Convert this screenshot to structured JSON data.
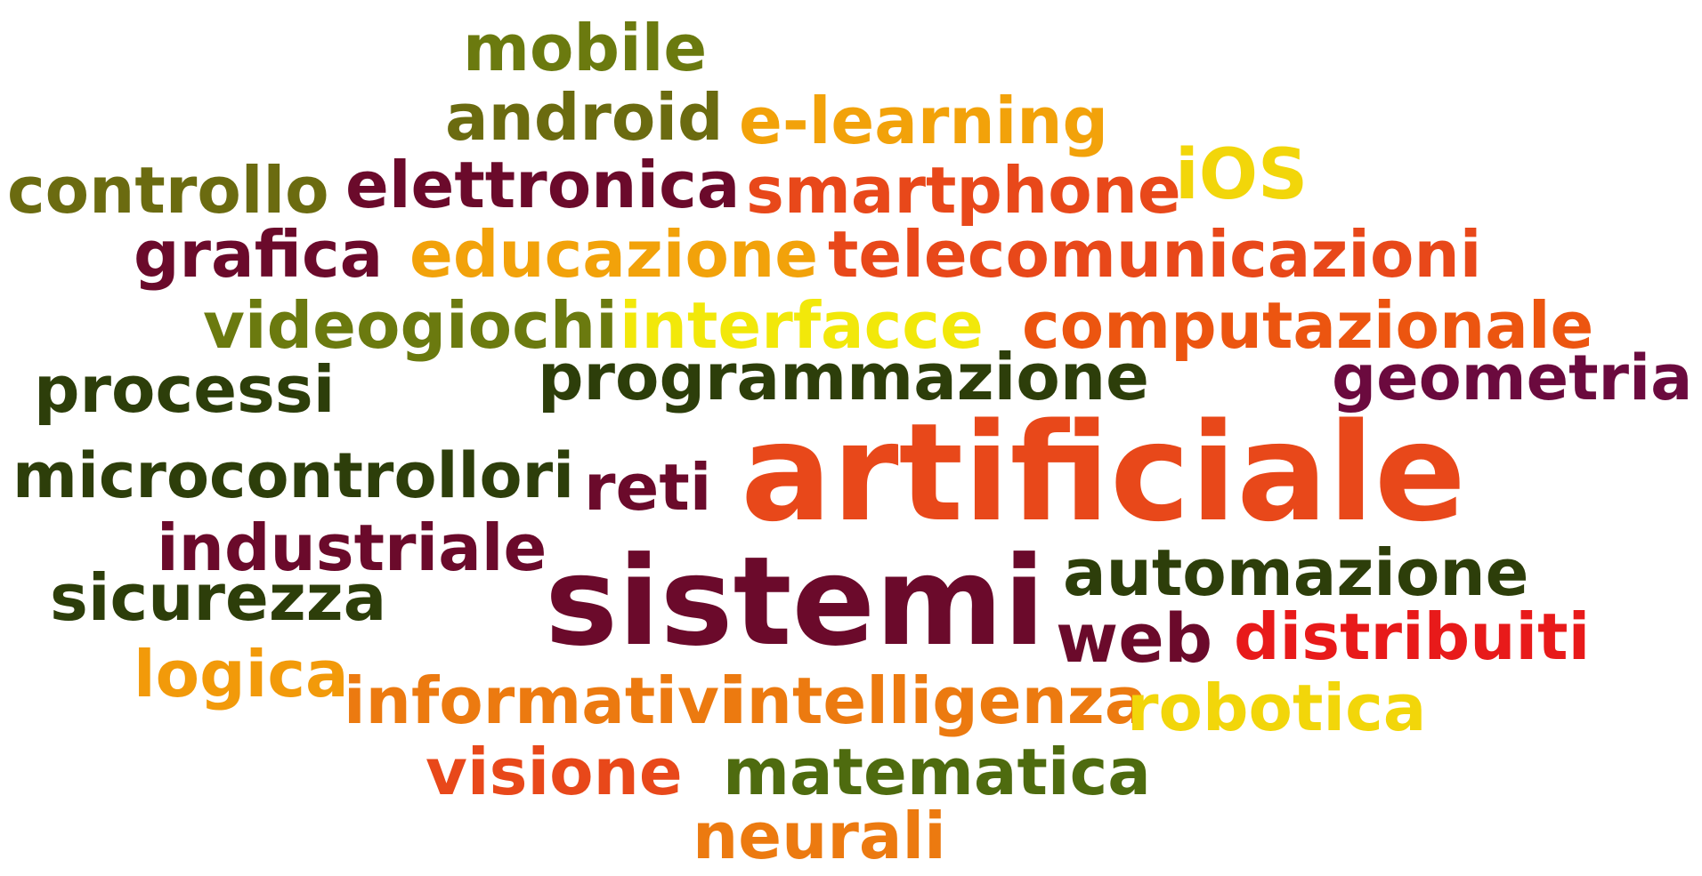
{
  "cloud": {
    "words": [
      {
        "id": "mobile",
        "text": "mobile",
        "color": "#6b7a0f"
      },
      {
        "id": "android",
        "text": "android",
        "color": "#6b6b10"
      },
      {
        "id": "elearning",
        "text": "e-learning",
        "color": "#f2a20a"
      },
      {
        "id": "controllo",
        "text": "controllo",
        "color": "#6b6b10"
      },
      {
        "id": "elettronica",
        "text": "elettronica",
        "color": "#6b0a2b"
      },
      {
        "id": "smartphone",
        "text": "smartphone",
        "color": "#e8481a"
      },
      {
        "id": "ios",
        "text": "iOS",
        "color": "#f2d60a"
      },
      {
        "id": "grafica",
        "text": "grafica",
        "color": "#6b0a2b"
      },
      {
        "id": "educazione",
        "text": "educazione",
        "color": "#f2a20a"
      },
      {
        "id": "telecom",
        "text": "telecomunicazioni",
        "color": "#e8481a"
      },
      {
        "id": "videogiochi",
        "text": "videogiochi",
        "color": "#6b7a0f"
      },
      {
        "id": "interfacce",
        "text": "interfacce",
        "color": "#f2e80a"
      },
      {
        "id": "computazionale",
        "text": "computazionale",
        "color": "#ec5510"
      },
      {
        "id": "processi",
        "text": "processi",
        "color": "#2d3e0a"
      },
      {
        "id": "programmazione",
        "text": "programmazione",
        "color": "#2d3e0a"
      },
      {
        "id": "geometria",
        "text": "geometria",
        "color": "#6b0a3e"
      },
      {
        "id": "artificiale",
        "text": "artificiale",
        "color": "#e8481a"
      },
      {
        "id": "microcontrollori",
        "text": "microcontrollori",
        "color": "#2d3e0a"
      },
      {
        "id": "reti",
        "text": "reti",
        "color": "#6b0a2b"
      },
      {
        "id": "industriale",
        "text": "industriale",
        "color": "#6b0a2b"
      },
      {
        "id": "automazione",
        "text": "automazione",
        "color": "#2d3e0a"
      },
      {
        "id": "sicurezza",
        "text": "sicurezza",
        "color": "#2d3e0a"
      },
      {
        "id": "sistemi",
        "text": "sistemi",
        "color": "#6b0a2b"
      },
      {
        "id": "web",
        "text": "web",
        "color": "#6b0a2b"
      },
      {
        "id": "distribuiti",
        "text": "distribuiti",
        "color": "#e81a1a"
      },
      {
        "id": "logica",
        "text": "logica",
        "color": "#f29a0a"
      },
      {
        "id": "informativi",
        "text": "informativi",
        "color": "#ec7a10"
      },
      {
        "id": "intelligenza",
        "text": "intelligenza",
        "color": "#ec7a10"
      },
      {
        "id": "robotica",
        "text": "robotica",
        "color": "#f2d60a"
      },
      {
        "id": "visione",
        "text": "visione",
        "color": "#e8481a"
      },
      {
        "id": "matematica",
        "text": "matematica",
        "color": "#4e6b0f"
      },
      {
        "id": "neurali",
        "text": "neurali",
        "color": "#ec7a10"
      }
    ]
  }
}
